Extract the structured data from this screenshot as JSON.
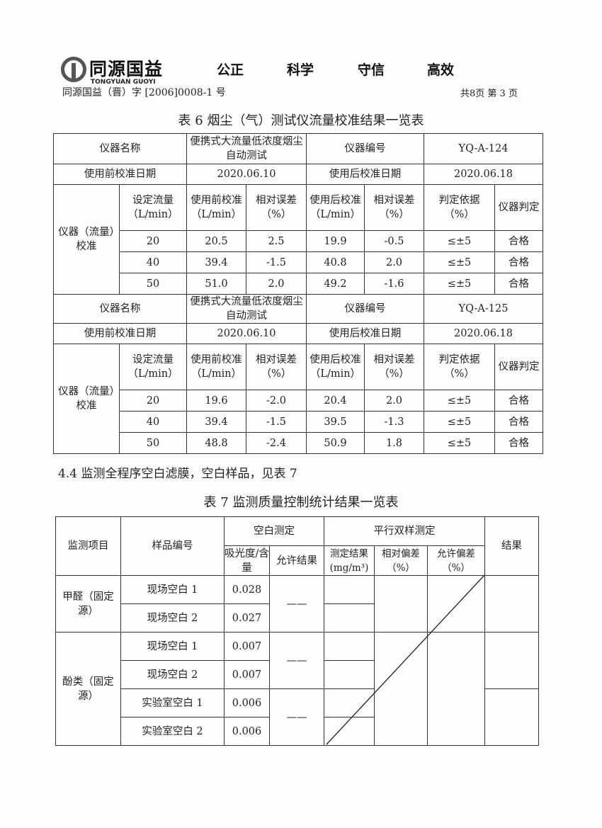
{
  "header": {
    "logo_cn": "同源国益",
    "logo_en": "TONGYUAN GUOYI",
    "slogans": [
      "公正",
      "科学",
      "守信",
      "高效"
    ],
    "doc_no": "同源国益（晋）字 [2006]0008-1 号",
    "page_info": "共8页  第 3 页"
  },
  "table6": {
    "caption": "表 6 烟尘（气）测试仪流量校准结果一览表",
    "labels": {
      "name": "仪器名称",
      "code": "仪器编号",
      "pre_date": "使用前校准日期",
      "post_date": "使用后校准日期",
      "group": "仪器（流量）校准",
      "cols": [
        "设定流量（L/min）",
        "使用前校准（L/min）",
        "相对误差（%）",
        "使用后校准（L/min）",
        "相对误差（%）",
        "判定依据（%）",
        "仪器判定"
      ]
    },
    "blocks": [
      {
        "name": "便携式大流量低浓度烟尘自动测试",
        "code": "YQ-A-124",
        "pre_date": "2020.06.10",
        "post_date": "2020.06.18",
        "rows": [
          [
            "20",
            "20.5",
            "2.5",
            "19.9",
            "-0.5",
            "≤±5",
            "合格"
          ],
          [
            "40",
            "39.4",
            "-1.5",
            "40.8",
            "2.0",
            "≤±5",
            "合格"
          ],
          [
            "50",
            "51.0",
            "2.0",
            "49.2",
            "-1.6",
            "≤±5",
            "合格"
          ]
        ]
      },
      {
        "name": "便携式大流量低浓度烟尘自动测试",
        "code": "YQ-A-125",
        "pre_date": "2020.06.10",
        "post_date": "2020.06.18",
        "rows": [
          [
            "20",
            "19.6",
            "-2.0",
            "20.4",
            "2.0",
            "≤±5",
            "合格"
          ],
          [
            "40",
            "39.4",
            "-1.5",
            "39.5",
            "-1.3",
            "≤±5",
            "合格"
          ],
          [
            "50",
            "48.8",
            "-2.4",
            "50.9",
            "1.8",
            "≤±5",
            "合格"
          ]
        ]
      }
    ]
  },
  "section": "4.4 监测全程序空白滤膜，空白样品，见表 7",
  "table7": {
    "caption": "表 7 监测质量控制统计结果一览表",
    "headers": {
      "item": "监测项目",
      "sample": "样品编号",
      "blank": "空白测定",
      "absorb": "吸光度/含量",
      "allowed_result": "允许结果",
      "parallel": "平行双样测定",
      "measured": "测定结果(mg/m³)",
      "rel_dev": "相对偏差（%）",
      "allow_dev": "允许偏差（%）",
      "result": "结果"
    },
    "dash": "——",
    "groups": [
      {
        "item": "甲醛（固定源）",
        "rows": [
          [
            "现场空白 1",
            "0.028"
          ],
          [
            "现场空白 2",
            "0.027"
          ]
        ]
      },
      {
        "item": "酚类（固定源）",
        "rows": [
          [
            "现场空白 1",
            "0.007"
          ],
          [
            "现场空白 2",
            "0.007"
          ],
          [
            "实验室空白 1",
            "0.006"
          ],
          [
            "实验室空白 2",
            "0.006"
          ]
        ]
      }
    ]
  }
}
